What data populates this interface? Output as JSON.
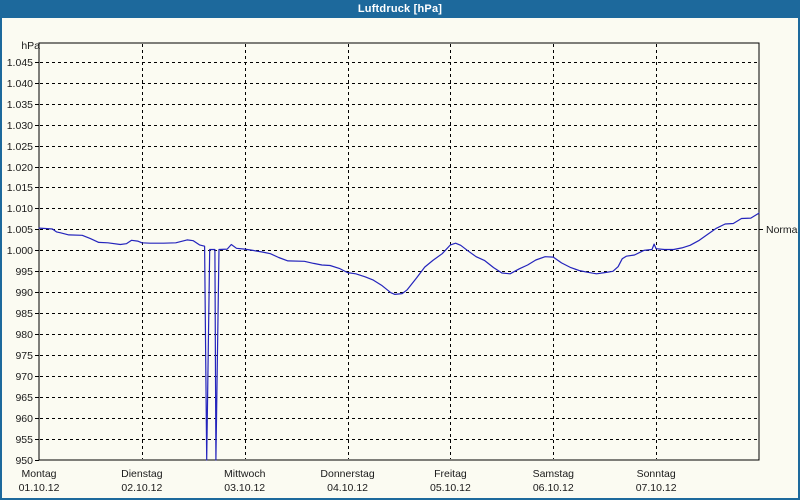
{
  "window": {
    "title": "Luftdruck [hPa]",
    "titlebar_color": "#1d699c",
    "frame_color": "#1d699c",
    "background_color": "#fbfbf2"
  },
  "chart_data": {
    "type": "line",
    "title": "Luftdruck [hPa]",
    "unit_label": "hPa",
    "ylabel": "hPa",
    "ylim": [
      950,
      1045
    ],
    "grid": true,
    "grid_color": "#000000",
    "line_color": "#2424bc",
    "text_color": "#1a1a1a",
    "legend_position": "none",
    "normal_marker": {
      "label": "Normal",
      "value": 1005
    },
    "y_ticks": [
      {
        "label": "1.045",
        "value": 1045
      },
      {
        "label": "1.040",
        "value": 1040
      },
      {
        "label": "1.035",
        "value": 1035
      },
      {
        "label": "1.030",
        "value": 1030
      },
      {
        "label": "1.025",
        "value": 1025
      },
      {
        "label": "1.020",
        "value": 1020
      },
      {
        "label": "1.015",
        "value": 1015
      },
      {
        "label": "1.010",
        "value": 1010
      },
      {
        "label": "1.005",
        "value": 1005
      },
      {
        "label": "1.000",
        "value": 1000
      },
      {
        "label": "995",
        "value": 995
      },
      {
        "label": "990",
        "value": 990
      },
      {
        "label": "985",
        "value": 985
      },
      {
        "label": "980",
        "value": 980
      },
      {
        "label": "975",
        "value": 975
      },
      {
        "label": "970",
        "value": 970
      },
      {
        "label": "965",
        "value": 965
      },
      {
        "label": "960",
        "value": 960
      },
      {
        "label": "955",
        "value": 955
      },
      {
        "label": "950",
        "value": 950
      }
    ],
    "x_days": [
      {
        "day": "Montag",
        "date": "01.10.12"
      },
      {
        "day": "Dienstag",
        "date": "02.10.12"
      },
      {
        "day": "Mittwoch",
        "date": "03.10.12"
      },
      {
        "day": "Donnerstag",
        "date": "04.10.12"
      },
      {
        "day": "Freitag",
        "date": "05.10.12"
      },
      {
        "day": "Samstag",
        "date": "06.10.12"
      },
      {
        "day": "Sonntag",
        "date": "07.10.12"
      }
    ],
    "series": [
      {
        "name": "Luftdruck",
        "x_unit": "days_from_monday_00h",
        "points": [
          [
            0.0,
            1005.3
          ],
          [
            0.08,
            1005.2
          ],
          [
            0.13,
            1005.1
          ],
          [
            0.17,
            1004.4
          ],
          [
            0.21,
            1004.2
          ],
          [
            0.29,
            1003.7
          ],
          [
            0.42,
            1003.6
          ],
          [
            0.5,
            1002.8
          ],
          [
            0.58,
            1001.9
          ],
          [
            0.67,
            1001.8
          ],
          [
            0.79,
            1001.4
          ],
          [
            0.85,
            1001.6
          ],
          [
            0.9,
            1002.4
          ],
          [
            0.96,
            1002.2
          ],
          [
            1.0,
            1001.8
          ],
          [
            1.08,
            1001.7
          ],
          [
            1.21,
            1001.7
          ],
          [
            1.33,
            1001.8
          ],
          [
            1.44,
            1002.5
          ],
          [
            1.5,
            1002.3
          ],
          [
            1.56,
            1001.3
          ],
          [
            1.61,
            1001.0
          ],
          [
            1.63,
            950.0
          ],
          [
            1.66,
            1000.2
          ],
          [
            1.71,
            1000.2
          ],
          [
            1.72,
            950.0
          ],
          [
            1.75,
            1000.2
          ],
          [
            1.83,
            1000.3
          ],
          [
            1.87,
            1001.4
          ],
          [
            1.92,
            1000.5
          ],
          [
            2.0,
            1000.3
          ],
          [
            2.08,
            1000.0
          ],
          [
            2.17,
            999.6
          ],
          [
            2.25,
            999.2
          ],
          [
            2.33,
            998.3
          ],
          [
            2.42,
            997.5
          ],
          [
            2.58,
            997.4
          ],
          [
            2.67,
            996.9
          ],
          [
            2.75,
            996.5
          ],
          [
            2.83,
            996.4
          ],
          [
            2.92,
            995.7
          ],
          [
            3.0,
            994.7
          ],
          [
            3.08,
            994.4
          ],
          [
            3.17,
            993.7
          ],
          [
            3.25,
            992.9
          ],
          [
            3.33,
            991.7
          ],
          [
            3.42,
            989.9
          ],
          [
            3.46,
            989.5
          ],
          [
            3.53,
            989.7
          ],
          [
            3.58,
            990.6
          ],
          [
            3.67,
            993.4
          ],
          [
            3.75,
            996.0
          ],
          [
            3.83,
            997.6
          ],
          [
            3.92,
            999.2
          ],
          [
            4.0,
            1001.3
          ],
          [
            4.05,
            1001.7
          ],
          [
            4.1,
            1001.2
          ],
          [
            4.17,
            999.9
          ],
          [
            4.25,
            998.5
          ],
          [
            4.33,
            997.6
          ],
          [
            4.42,
            995.9
          ],
          [
            4.5,
            994.6
          ],
          [
            4.58,
            994.4
          ],
          [
            4.67,
            995.6
          ],
          [
            4.75,
            996.5
          ],
          [
            4.83,
            997.7
          ],
          [
            4.92,
            998.5
          ],
          [
            5.0,
            998.4
          ],
          [
            5.08,
            997.0
          ],
          [
            5.17,
            995.9
          ],
          [
            5.25,
            995.2
          ],
          [
            5.33,
            994.8
          ],
          [
            5.42,
            994.4
          ],
          [
            5.5,
            994.7
          ],
          [
            5.58,
            995.0
          ],
          [
            5.63,
            996.1
          ],
          [
            5.67,
            998.0
          ],
          [
            5.71,
            998.6
          ],
          [
            5.79,
            998.9
          ],
          [
            5.88,
            1000.0
          ],
          [
            5.96,
            1000.2
          ],
          [
            5.98,
            1001.5
          ],
          [
            6.0,
            1000.4
          ],
          [
            6.08,
            1000.2
          ],
          [
            6.17,
            1000.2
          ],
          [
            6.25,
            1000.6
          ],
          [
            6.33,
            1001.2
          ],
          [
            6.42,
            1002.4
          ],
          [
            6.5,
            1003.8
          ],
          [
            6.58,
            1005.2
          ],
          [
            6.67,
            1006.3
          ],
          [
            6.75,
            1006.4
          ],
          [
            6.83,
            1007.6
          ],
          [
            6.92,
            1007.7
          ],
          [
            7.0,
            1008.9
          ]
        ]
      }
    ]
  }
}
